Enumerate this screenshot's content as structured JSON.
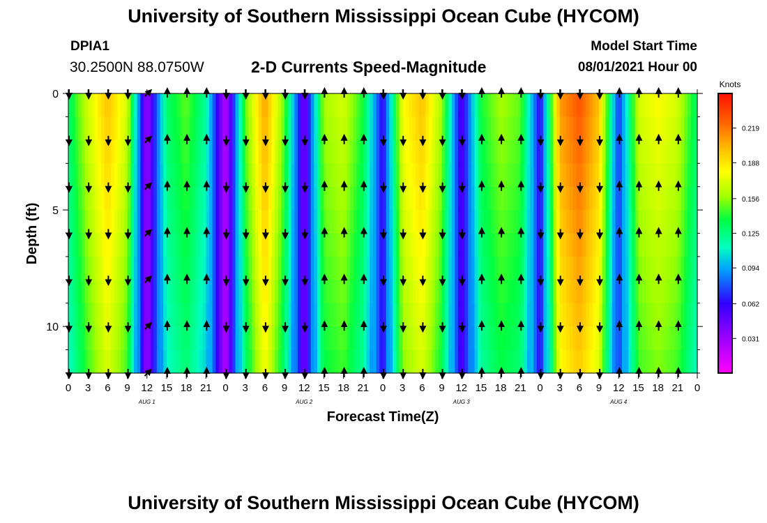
{
  "header": {
    "title": "University of Southern Mississippi Ocean Cube (HYCOM)",
    "footer_title": "University of Southern Mississippi Ocean Cube (HYCOM)",
    "station_id": "DPIA1",
    "station_coords": "30.2500N  88.0750W",
    "subtitle": "2-D Currents Speed-Magnitude",
    "start_label": "Model Start Time",
    "start_value": "08/01/2021 Hour 00"
  },
  "chart_data": {
    "type": "heatmap",
    "title": "2-D Currents Speed-Magnitude",
    "xlabel": "Forecast Time(Z)",
    "ylabel": "Depth (ft)",
    "colorbar_label": "Knots",
    "colorbar_ticks": [
      0.031,
      0.062,
      0.094,
      0.125,
      0.156,
      0.188,
      0.219
    ],
    "color_range": [
      0.0,
      0.25
    ],
    "xlim": [
      0,
      96
    ],
    "ylim": [
      0,
      12
    ],
    "x_tick_hours": [
      0,
      3,
      6,
      9,
      12,
      15,
      18,
      21,
      24,
      27,
      30,
      33,
      36,
      39,
      42,
      45,
      48,
      51,
      54,
      57,
      60,
      63,
      66,
      69,
      72,
      75,
      78,
      81,
      84,
      87,
      90,
      93,
      96
    ],
    "x_tick_labels": [
      "0",
      "3",
      "6",
      "9",
      "12",
      "15",
      "18",
      "21",
      "0",
      "3",
      "6",
      "9",
      "12",
      "15",
      "18",
      "21",
      "0",
      "3",
      "6",
      "9",
      "12",
      "15",
      "18",
      "21",
      "0",
      "3",
      "6",
      "9",
      "12",
      "15",
      "18",
      "21",
      "0"
    ],
    "day_labels": [
      {
        "hour": 12,
        "label": "AUG  1"
      },
      {
        "hour": 36,
        "label": "AUG  2"
      },
      {
        "hour": 60,
        "label": "AUG  3"
      },
      {
        "hour": 84,
        "label": "AUG  4"
      }
    ],
    "y_ticks": [
      0,
      5,
      10
    ],
    "depths": [
      0,
      2,
      4,
      6,
      8,
      10,
      12
    ],
    "hours": [
      0,
      3,
      6,
      9,
      12,
      15,
      18,
      21,
      24,
      27,
      30,
      33,
      36,
      39,
      42,
      45,
      48,
      51,
      54,
      57,
      60,
      63,
      66,
      69,
      72,
      75,
      78,
      81,
      84,
      87,
      90,
      93
    ],
    "speed_profile": [
      0.13,
      0.17,
      0.2,
      0.17,
      0.03,
      0.13,
      0.15,
      0.12,
      0.02,
      0.15,
      0.21,
      0.15,
      0.04,
      0.16,
      0.17,
      0.14,
      0.06,
      0.18,
      0.2,
      0.16,
      0.05,
      0.14,
      0.16,
      0.15,
      0.06,
      0.21,
      0.23,
      0.2,
      0.07,
      0.17,
      0.18,
      0.17
    ],
    "arrow_directions": [
      "S",
      "S",
      "S",
      "S",
      "NE",
      "N",
      "N",
      "N",
      "S",
      "S",
      "S",
      "S",
      "S",
      "N",
      "N",
      "N",
      "S",
      "S",
      "S",
      "S",
      "S",
      "N",
      "N",
      "N",
      "S",
      "S",
      "S",
      "S",
      "N",
      "N",
      "N",
      "N"
    ]
  }
}
